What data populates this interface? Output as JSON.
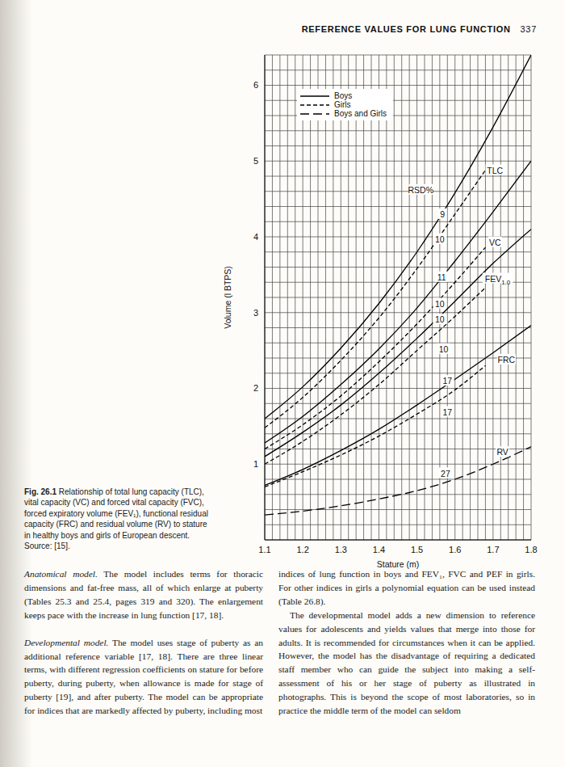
{
  "header": {
    "title": "REFERENCE VALUES FOR LUNG FUNCTION",
    "page": "337"
  },
  "chart_data": {
    "type": "line",
    "x_label": "Stature (m)",
    "y_label": "Volume (l BTPS)",
    "xlim": [
      1.1,
      1.8
    ],
    "xticks": [
      1.1,
      1.2,
      1.3,
      1.4,
      1.5,
      1.6,
      1.7,
      1.8
    ],
    "ylim": [
      0,
      6.4
    ],
    "yticks": [
      1,
      2,
      3,
      4,
      5,
      6
    ],
    "grid": true,
    "legend": "upper left",
    "series": [
      {
        "name": "Boys",
        "color": "#000000",
        "line_style": "solid",
        "x": [
          1.1,
          1.2,
          1.3,
          1.4,
          1.5,
          1.6,
          1.7,
          1.8
        ],
        "values": [
          1.6,
          2.02,
          2.53,
          3.12,
          3.8,
          4.58,
          5.45,
          6.4
        ]
      },
      {
        "name": "Girls",
        "color": "#000000",
        "line_style": "dashed",
        "x": [
          1.1,
          1.2,
          1.3,
          1.4,
          1.5,
          1.6,
          1.68
        ],
        "values": [
          1.48,
          1.88,
          2.37,
          2.93,
          3.58,
          4.3,
          4.88
        ]
      },
      {
        "name": "Boys",
        "color": "#000000",
        "line_style": "solid",
        "x": [
          1.1,
          1.2,
          1.3,
          1.4,
          1.5,
          1.6,
          1.7,
          1.8
        ],
        "values": [
          1.28,
          1.63,
          2.05,
          2.52,
          3.06,
          3.68,
          4.33,
          5.0
        ]
      },
      {
        "name": "Girls",
        "color": "#000000",
        "line_style": "dashed",
        "x": [
          1.1,
          1.2,
          1.3,
          1.4,
          1.5,
          1.6,
          1.68
        ],
        "values": [
          1.2,
          1.52,
          1.9,
          2.35,
          2.85,
          3.4,
          3.86
        ]
      },
      {
        "name": "Boys",
        "color": "#000000",
        "line_style": "solid",
        "x": [
          1.1,
          1.2,
          1.3,
          1.4,
          1.5,
          1.6,
          1.7,
          1.8
        ],
        "values": [
          1.1,
          1.42,
          1.78,
          2.2,
          2.66,
          3.15,
          3.65,
          4.1
        ]
      },
      {
        "name": "Girls",
        "color": "#000000",
        "line_style": "dashed",
        "x": [
          1.1,
          1.2,
          1.3,
          1.4,
          1.5,
          1.6,
          1.68
        ],
        "values": [
          1.0,
          1.3,
          1.65,
          2.05,
          2.5,
          2.95,
          3.33
        ]
      },
      {
        "name": "Boys",
        "color": "#000000",
        "line_style": "solid",
        "x": [
          1.1,
          1.2,
          1.3,
          1.4,
          1.5,
          1.6,
          1.7,
          1.8
        ],
        "values": [
          0.72,
          0.93,
          1.18,
          1.46,
          1.78,
          2.12,
          2.47,
          2.83
        ]
      },
      {
        "name": "Girls",
        "color": "#000000",
        "line_style": "dashed",
        "x": [
          1.1,
          1.2,
          1.3,
          1.4,
          1.5,
          1.6,
          1.68
        ],
        "values": [
          0.7,
          0.9,
          1.12,
          1.37,
          1.66,
          1.98,
          2.3
        ]
      },
      {
        "name": "Boys and Girls",
        "color": "#000000",
        "line_style": "longdash",
        "x": [
          1.1,
          1.2,
          1.3,
          1.4,
          1.5,
          1.6,
          1.7,
          1.8
        ],
        "values": [
          0.33,
          0.38,
          0.45,
          0.54,
          0.65,
          0.8,
          1.0,
          1.23
        ]
      }
    ],
    "annotations": [
      {
        "text": "TLC",
        "x": 1.705,
        "y": 4.88
      },
      {
        "text": "VC",
        "x": 1.705,
        "y": 3.93
      },
      {
        "text": "FEV",
        "subscript": "1.0",
        "x": 1.712,
        "y": 3.45
      },
      {
        "text": "FRC",
        "x": 1.735,
        "y": 2.38
      },
      {
        "text": "RV",
        "x": 1.725,
        "y": 1.16
      },
      {
        "text": "RSD%",
        "x": 1.51,
        "y": 4.62
      },
      {
        "text": "9",
        "x": 1.567,
        "y": 4.3
      },
      {
        "text": "10",
        "x": 1.56,
        "y": 3.97
      },
      {
        "text": "11",
        "x": 1.565,
        "y": 3.47
      },
      {
        "text": "10",
        "x": 1.56,
        "y": 3.12
      },
      {
        "text": "10",
        "x": 1.56,
        "y": 2.91
      },
      {
        "text": "10",
        "x": 1.57,
        "y": 2.52
      },
      {
        "text": "17",
        "x": 1.58,
        "y": 2.1
      },
      {
        "text": "17",
        "x": 1.58,
        "y": 1.69
      },
      {
        "text": "27",
        "x": 1.575,
        "y": 0.88
      }
    ]
  },
  "caption": {
    "label": "Fig. 26.1",
    "text": "Relationship of total lung capacity (TLC), vital capacity (VC) and forced vital capacity (FVC), forced expiratory volume (FEV₁), functional residual capacity (FRC) and residual volume (RV) to stature in healthy boys and girls of European descent. Source: [15]."
  },
  "body": {
    "left": [
      {
        "heading": "Anatomical model.",
        "text": "The model includes terms for thoracic dimensions and fat-free mass, all of which enlarge at puberty (Tables 25.3 and 25.4, pages 319 and 320). The enlargement keeps pace with the increase in lung function [17, 18]."
      },
      {
        "heading": "Developmental model.",
        "text": "The model uses stage of puberty as an additional reference variable [17, 18]. There are three linear terms, with different regression coefficients on stature for before puberty, during puberty, when allowance is made for stage of puberty [19], and after puberty. The model can be appropriate for indices that are markedly affected by puberty, including most"
      }
    ],
    "right": [
      {
        "text": "indices of lung function in boys and FEV₁, FVC and PEF in girls. For other indices in girls a polynomial equation can be used instead (Table 26.8)."
      },
      {
        "text": "The developmental model adds a new dimension to reference values for adolescents and yields values that merge into those for adults. It is recommended for circumstances when it can be applied. However, the model has the disadvantage of requiring a dedicated staff member who can guide the subject into making a self-assessment of his or her stage of puberty as illustrated in photographs. This is beyond the scope of most laboratories, so in practice the middle term of the model can seldom"
      }
    ]
  }
}
